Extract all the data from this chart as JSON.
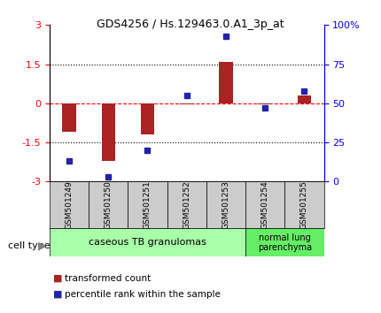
{
  "title": "GDS4256 / Hs.129463.0.A1_3p_at",
  "samples": [
    "GSM501249",
    "GSM501250",
    "GSM501251",
    "GSM501252",
    "GSM501253",
    "GSM501254",
    "GSM501255"
  ],
  "transformed_count": [
    -1.1,
    -2.2,
    -1.2,
    -0.05,
    1.6,
    -0.05,
    0.3
  ],
  "percentile_rank": [
    13,
    3,
    20,
    55,
    93,
    47,
    58
  ],
  "ylim_left": [
    -3,
    3
  ],
  "ylim_right": [
    0,
    100
  ],
  "left_yticks": [
    -3,
    -1.5,
    0,
    1.5,
    3
  ],
  "right_yticks": [
    0,
    25,
    50,
    75,
    100
  ],
  "right_yticklabels": [
    "0",
    "25",
    "50",
    "75",
    "100%"
  ],
  "hlines": [
    -1.5,
    0,
    1.5
  ],
  "bar_color": "#AA2222",
  "dot_color": "#2222AA",
  "group1_label": "caseous TB granulomas",
  "group1_indices": [
    0,
    1,
    2,
    3,
    4
  ],
  "group2_label": "normal lung\nparenchyma",
  "group2_indices": [
    5,
    6
  ],
  "group1_color": "#AAFFAA",
  "group2_color": "#66EE66",
  "cell_type_label": "cell type",
  "legend_bar_label": "transformed count",
  "legend_dot_label": "percentile rank within the sample",
  "xlabel_bg": "#CCCCCC"
}
